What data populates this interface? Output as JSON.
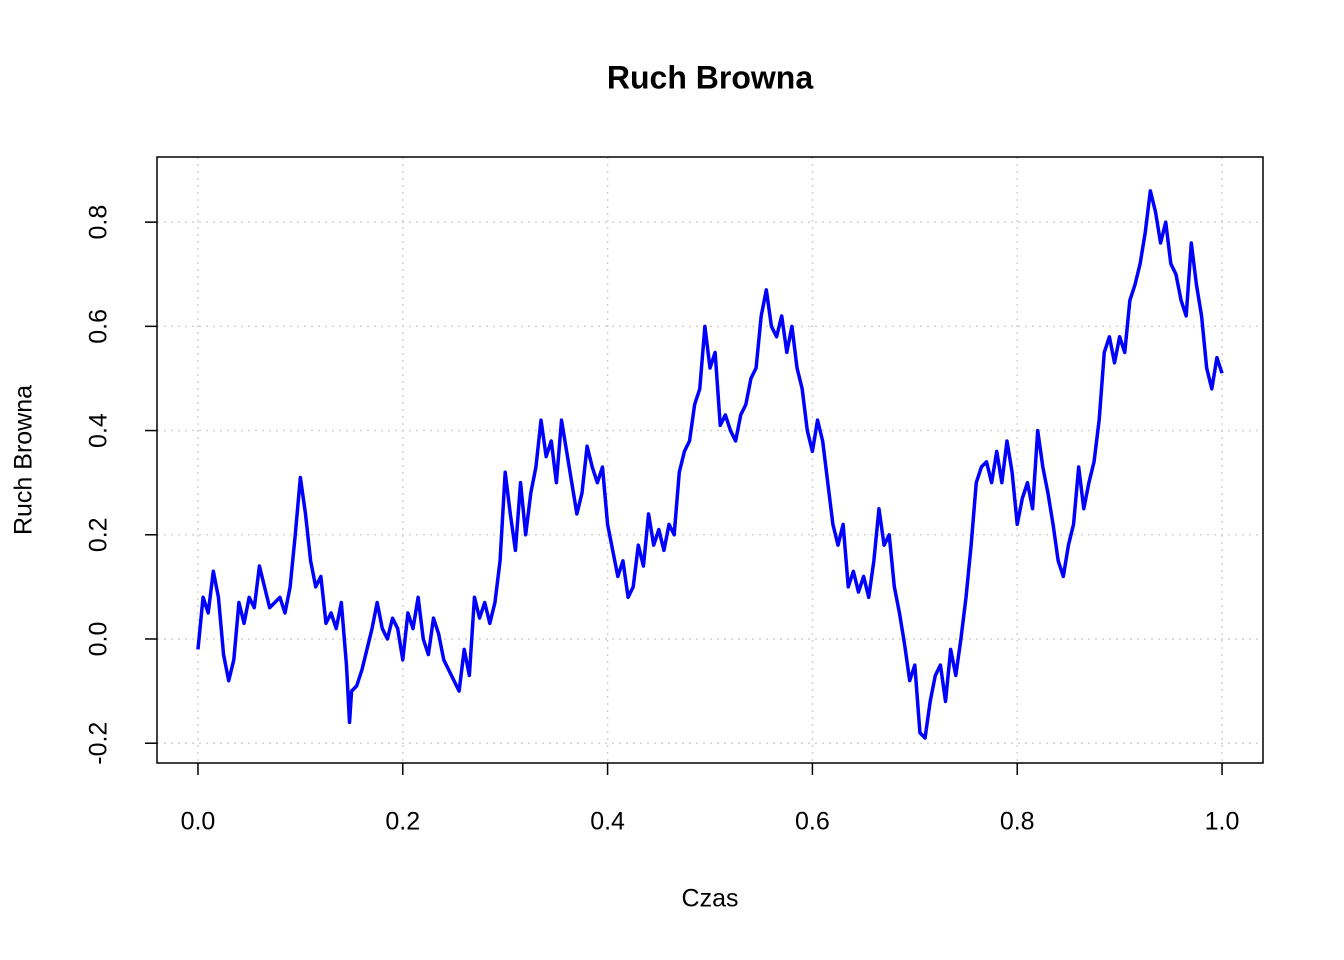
{
  "chart_data": {
    "type": "line",
    "title": "Ruch Browna",
    "xlabel": "Czas",
    "ylabel": "Ruch Browna",
    "color": "#0000ff",
    "grid": true,
    "xlim": [
      -0.04,
      1.04
    ],
    "ylim": [
      -0.238,
      0.925
    ],
    "xticks": [
      {
        "value": 0,
        "label": "0.0"
      },
      0.2,
      0.4,
      0.6,
      0.8,
      {
        "value": 1,
        "label": "1.0"
      }
    ],
    "yticks": [
      -0.2,
      {
        "value": 0,
        "label": "0.0"
      },
      0.2,
      0.4,
      0.6,
      0.8
    ],
    "x": [
      0,
      0.005,
      0.01,
      0.015,
      0.02,
      0.025,
      0.03,
      0.035,
      0.04,
      0.045,
      0.05,
      0.055,
      0.06,
      0.065,
      0.07,
      0.08,
      0.085,
      0.09,
      0.095,
      0.1,
      0.105,
      0.11,
      0.115,
      0.12,
      0.125,
      0.13,
      0.135,
      0.14,
      0.145,
      0.148,
      0.15,
      0.155,
      0.16,
      0.165,
      0.17,
      0.175,
      0.18,
      0.185,
      0.19,
      0.195,
      0.2,
      0.205,
      0.21,
      0.215,
      0.22,
      0.225,
      0.23,
      0.235,
      0.24,
      0.245,
      0.25,
      0.255,
      0.26,
      0.265,
      0.27,
      0.275,
      0.28,
      0.285,
      0.29,
      0.295,
      0.3,
      0.305,
      0.31,
      0.315,
      0.32,
      0.325,
      0.33,
      0.335,
      0.34,
      0.345,
      0.35,
      0.355,
      0.36,
      0.365,
      0.37,
      0.375,
      0.38,
      0.385,
      0.39,
      0.395,
      0.4,
      0.405,
      0.41,
      0.415,
      0.42,
      0.425,
      0.43,
      0.435,
      0.44,
      0.445,
      0.45,
      0.455,
      0.46,
      0.465,
      0.47,
      0.475,
      0.48,
      0.485,
      0.49,
      0.495,
      0.5,
      0.505,
      0.51,
      0.515,
      0.52,
      0.525,
      0.53,
      0.535,
      0.54,
      0.545,
      0.55,
      0.555,
      0.56,
      0.565,
      0.57,
      0.575,
      0.58,
      0.585,
      0.59,
      0.595,
      0.6,
      0.605,
      0.61,
      0.615,
      0.62,
      0.625,
      0.63,
      0.635,
      0.64,
      0.645,
      0.65,
      0.655,
      0.66,
      0.665,
      0.67,
      0.675,
      0.68,
      0.685,
      0.69,
      0.695,
      0.7,
      0.705,
      0.71,
      0.715,
      0.72,
      0.725,
      0.73,
      0.735,
      0.74,
      0.745,
      0.75,
      0.755,
      0.76,
      0.765,
      0.77,
      0.775,
      0.78,
      0.785,
      0.79,
      0.795,
      0.8,
      0.805,
      0.81,
      0.815,
      0.82,
      0.825,
      0.83,
      0.835,
      0.84,
      0.845,
      0.85,
      0.855,
      0.86,
      0.865,
      0.87,
      0.875,
      0.88,
      0.885,
      0.89,
      0.895,
      0.9,
      0.905,
      0.91,
      0.915,
      0.92,
      0.925,
      0.93,
      0.935,
      0.94,
      0.945,
      0.95,
      0.955,
      0.96,
      0.965,
      0.97,
      0.975,
      0.98,
      0.985,
      0.99,
      0.995,
      1
    ],
    "values": [
      -0.02,
      0.08,
      0.05,
      0.13,
      0.08,
      -0.03,
      -0.08,
      -0.04,
      0.07,
      0.03,
      0.08,
      0.06,
      0.14,
      0.1,
      0.06,
      0.08,
      0.05,
      0.1,
      0.2,
      0.31,
      0.24,
      0.15,
      0.1,
      0.12,
      0.03,
      0.05,
      0.02,
      0.07,
      -0.05,
      -0.16,
      -0.1,
      -0.09,
      -0.06,
      -0.02,
      0.02,
      0.07,
      0.02,
      0,
      0.04,
      0.02,
      -0.04,
      0.05,
      0.02,
      0.08,
      0,
      -0.03,
      0.04,
      0.01,
      -0.04,
      -0.06,
      -0.08,
      -0.1,
      -0.02,
      -0.07,
      0.08,
      0.04,
      0.07,
      0.03,
      0.07,
      0.15,
      0.32,
      0.24,
      0.17,
      0.3,
      0.2,
      0.28,
      0.33,
      0.42,
      0.35,
      0.38,
      0.3,
      0.42,
      0.36,
      0.3,
      0.24,
      0.28,
      0.37,
      0.33,
      0.3,
      0.33,
      0.22,
      0.17,
      0.12,
      0.15,
      0.08,
      0.1,
      0.18,
      0.14,
      0.24,
      0.18,
      0.21,
      0.17,
      0.22,
      0.2,
      0.32,
      0.36,
      0.38,
      0.45,
      0.48,
      0.6,
      0.52,
      0.55,
      0.41,
      0.43,
      0.4,
      0.38,
      0.43,
      0.45,
      0.5,
      0.52,
      0.62,
      0.67,
      0.6,
      0.58,
      0.62,
      0.55,
      0.6,
      0.52,
      0.48,
      0.4,
      0.36,
      0.42,
      0.38,
      0.3,
      0.22,
      0.18,
      0.22,
      0.1,
      0.13,
      0.09,
      0.12,
      0.08,
      0.15,
      0.25,
      0.18,
      0.2,
      0.1,
      0.05,
      -0.01,
      -0.08,
      -0.05,
      -0.18,
      -0.19,
      -0.12,
      -0.07,
      -0.05,
      -0.12,
      -0.02,
      -0.07,
      0,
      0.08,
      0.18,
      0.3,
      0.33,
      0.34,
      0.3,
      0.36,
      0.3,
      0.38,
      0.32,
      0.22,
      0.27,
      0.3,
      0.25,
      0.4,
      0.33,
      0.28,
      0.22,
      0.15,
      0.12,
      0.18,
      0.22,
      0.33,
      0.25,
      0.3,
      0.34,
      0.42,
      0.55,
      0.58,
      0.53,
      0.58,
      0.55,
      0.65,
      0.68,
      0.72,
      0.78,
      0.86,
      0.82,
      0.76,
      0.8,
      0.72,
      0.7,
      0.65,
      0.62,
      0.76,
      0.68,
      0.62,
      0.52,
      0.48,
      0.54,
      0.51
    ]
  }
}
